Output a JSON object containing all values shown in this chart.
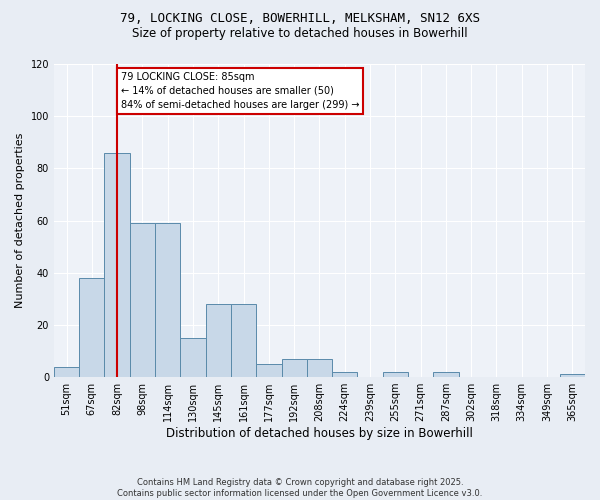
{
  "title1": "79, LOCKING CLOSE, BOWERHILL, MELKSHAM, SN12 6XS",
  "title2": "Size of property relative to detached houses in Bowerhill",
  "xlabel": "Distribution of detached houses by size in Bowerhill",
  "ylabel": "Number of detached properties",
  "footer": "Contains HM Land Registry data © Crown copyright and database right 2025.\nContains public sector information licensed under the Open Government Licence v3.0.",
  "bin_labels": [
    "51sqm",
    "67sqm",
    "82sqm",
    "98sqm",
    "114sqm",
    "130sqm",
    "145sqm",
    "161sqm",
    "177sqm",
    "192sqm",
    "208sqm",
    "224sqm",
    "239sqm",
    "255sqm",
    "271sqm",
    "287sqm",
    "302sqm",
    "318sqm",
    "334sqm",
    "349sqm",
    "365sqm"
  ],
  "bar_values": [
    4,
    38,
    86,
    59,
    59,
    15,
    28,
    28,
    5,
    7,
    7,
    2,
    0,
    2,
    0,
    2,
    0,
    0,
    0,
    0,
    1
  ],
  "bar_color": "#c8d8e8",
  "bar_edge_color": "#5a8aaa",
  "vline_x": 2,
  "vline_color": "#cc0000",
  "annotation_title": "79 LOCKING CLOSE: 85sqm",
  "annotation_line1": "← 14% of detached houses are smaller (50)",
  "annotation_line2": "84% of semi-detached houses are larger (299) →",
  "annotation_box_color": "#ffffff",
  "annotation_box_edge": "#cc0000",
  "ylim": [
    0,
    120
  ],
  "yticks": [
    0,
    20,
    40,
    60,
    80,
    100,
    120
  ],
  "bg_color": "#e8edf4",
  "plot_bg_color": "#eef2f8",
  "title1_fontsize": 9,
  "title2_fontsize": 8.5,
  "ylabel_fontsize": 8,
  "xlabel_fontsize": 8.5,
  "tick_fontsize": 7,
  "footer_fontsize": 6,
  "annot_fontsize": 7
}
